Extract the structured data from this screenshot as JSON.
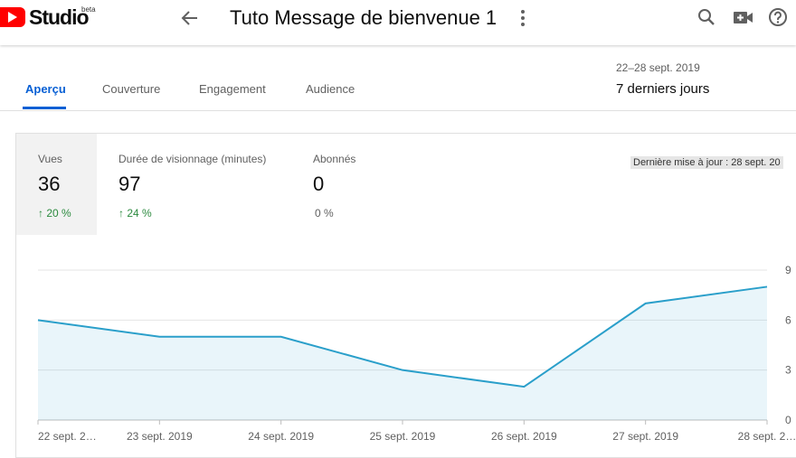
{
  "header": {
    "logo": "Studio",
    "badge": "beta",
    "title": "Tuto Message de bienvenue 1"
  },
  "tabs": [
    "Aperçu",
    "Couverture",
    "Engagement",
    "Audience"
  ],
  "period": {
    "dates": "22–28 sept. 2019",
    "label": "7 derniers jours"
  },
  "metrics": [
    {
      "label": "Vues",
      "value": "36",
      "change": "20 %"
    },
    {
      "label": "Durée de visionnage (minutes)",
      "value": "97",
      "change": "24 %"
    },
    {
      "label": "Abonnés",
      "value": "0",
      "change": "0 %"
    }
  ],
  "last_update": "Dernière mise à jour : 28 sept. 20",
  "chart_data": {
    "type": "line",
    "categories": [
      "22 sept. 2…",
      "23 sept. 2019",
      "24 sept. 2019",
      "25 sept. 2019",
      "26 sept. 2019",
      "27 sept. 2019",
      "28 sept. 2…"
    ],
    "series": [
      {
        "color": "#2a9fca",
        "values": [
          6,
          5,
          5,
          3,
          2,
          7,
          8
        ]
      }
    ],
    "ylim": [
      0,
      9
    ],
    "yticks": [
      0,
      3,
      6,
      9
    ],
    "grid": true
  }
}
